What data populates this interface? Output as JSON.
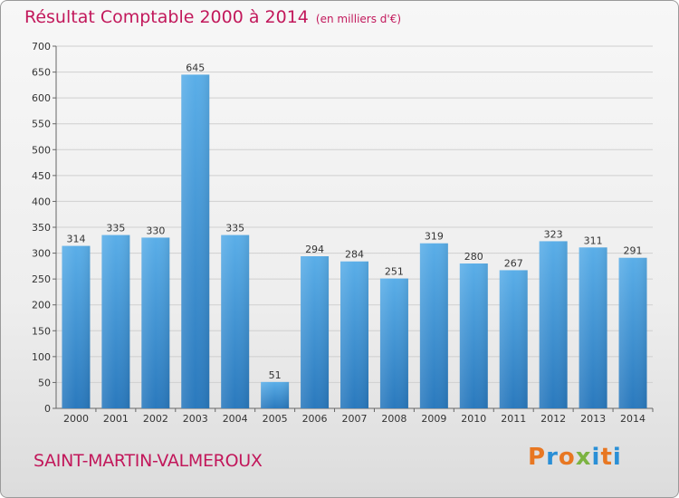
{
  "header": {
    "title": "Résultat Comptable 2000 à 2014",
    "unit": "(en milliers d'€)"
  },
  "footer": {
    "place": "SAINT-MARTIN-VALMEROUX",
    "logo": "Proxiti"
  },
  "colors": {
    "accent": "#c2185b",
    "bar_top": "#5aaee8",
    "bar_bottom": "#2a79bd",
    "logo_letters": [
      "#e87722",
      "#2a8fd6",
      "#e87722",
      "#7cb342",
      "#2a8fd6",
      "#e87722",
      "#2a8fd6"
    ]
  },
  "chart_data": {
    "type": "bar",
    "title": "Résultat Comptable 2000 à 2014",
    "subtitle": "(en milliers d'€)",
    "xlabel": "",
    "ylabel": "",
    "ylim": [
      0,
      700
    ],
    "yticks": [
      0,
      50,
      100,
      150,
      200,
      250,
      300,
      350,
      400,
      450,
      500,
      550,
      600,
      650,
      700
    ],
    "grid": true,
    "categories": [
      "2000",
      "2001",
      "2002",
      "2003",
      "2004",
      "2005",
      "2006",
      "2007",
      "2008",
      "2009",
      "2010",
      "2011",
      "2012",
      "2013",
      "2014"
    ],
    "values": [
      314,
      335,
      330,
      645,
      335,
      51,
      294,
      284,
      251,
      319,
      280,
      267,
      323,
      311,
      291
    ]
  }
}
